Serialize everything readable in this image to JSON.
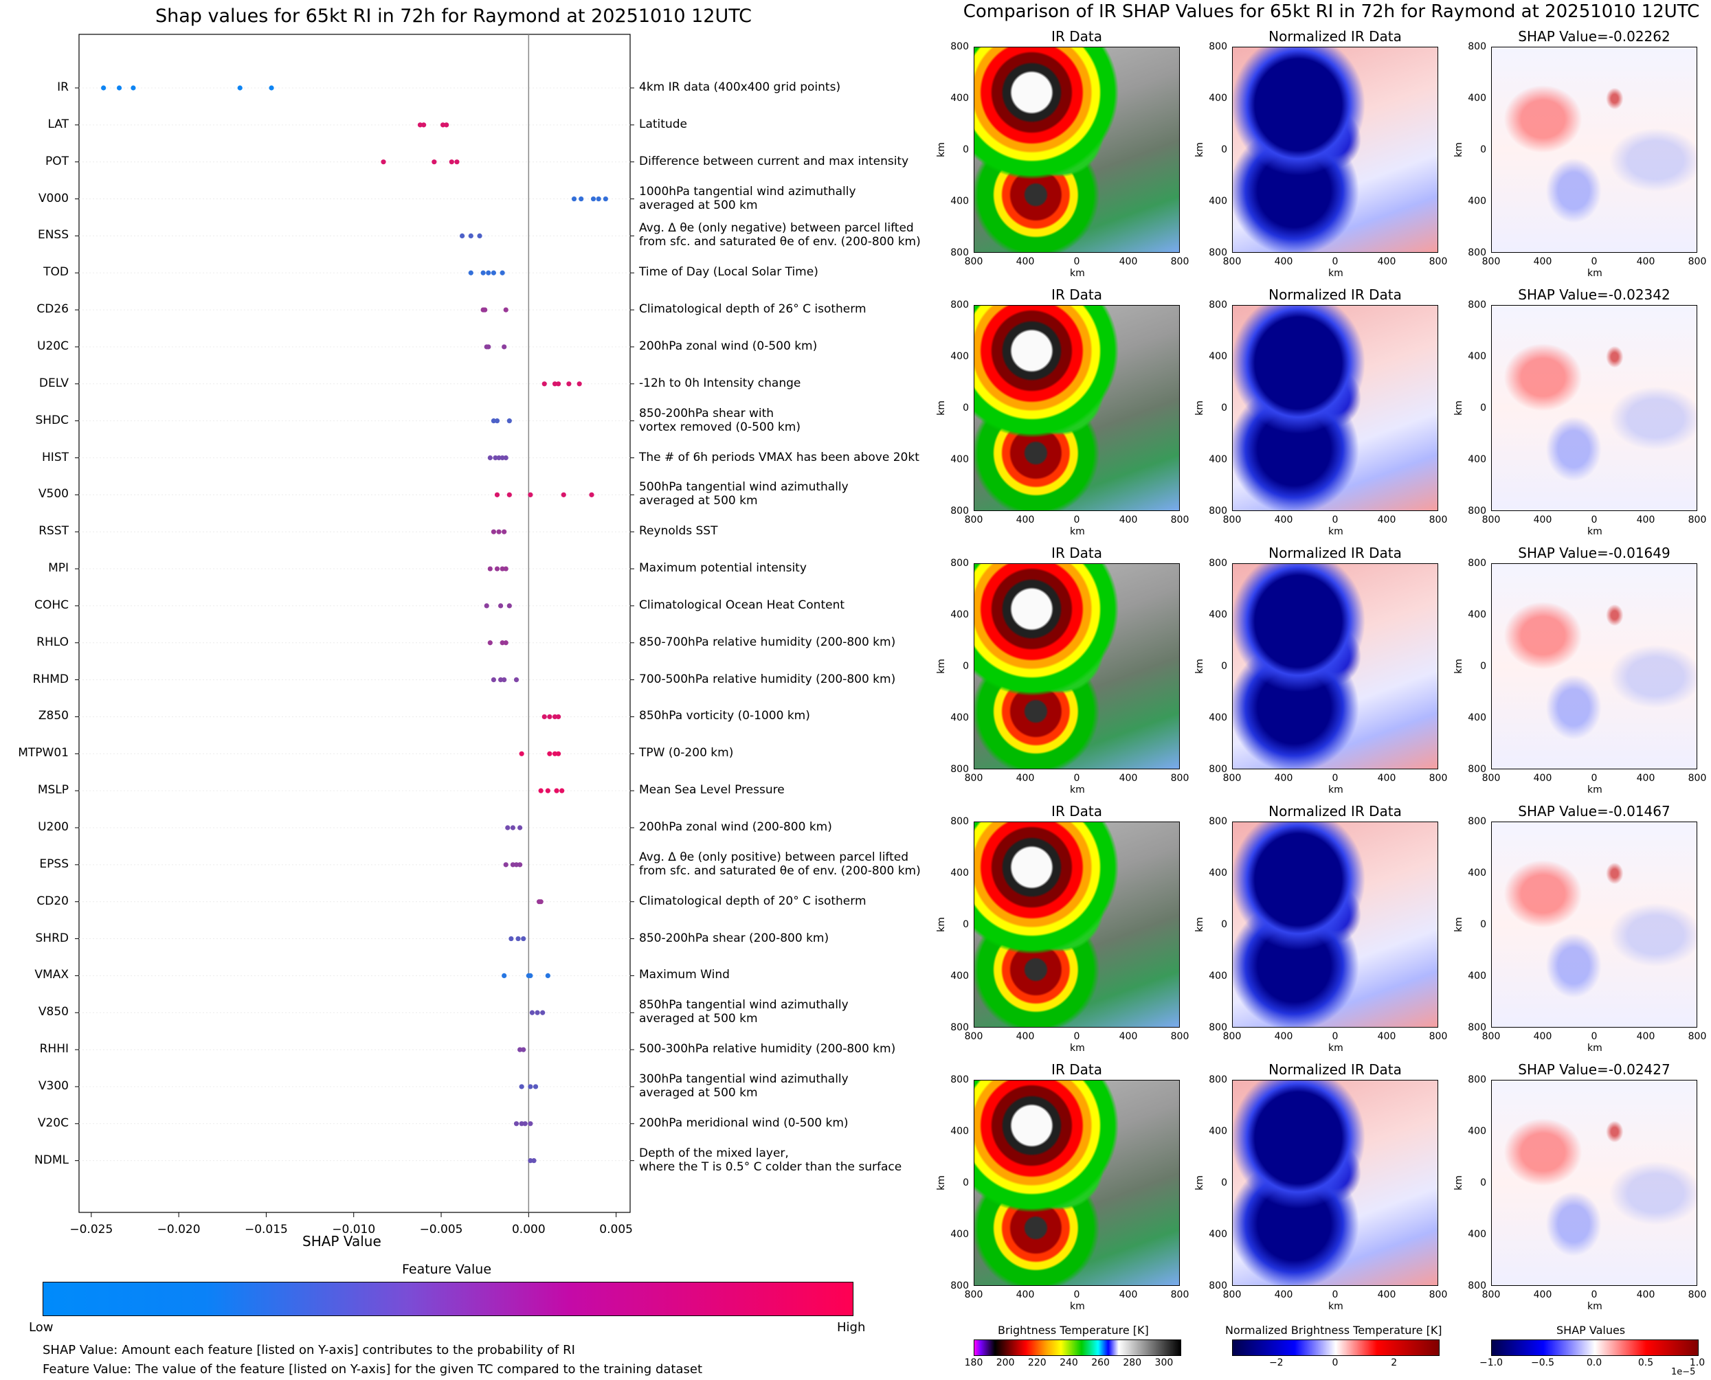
{
  "chart_data": [
    {
      "type": "scatter",
      "title": "Shap values for 65kt RI in 72h for Raymond at 20251010 12UTC",
      "xlabel": "SHAP Value",
      "xlim": [
        -0.0257,
        0.0058
      ],
      "xticks": [
        "−0.025",
        "−0.020",
        "−0.015",
        "−0.010",
        "−0.005",
        "0.000",
        "0.005"
      ],
      "xtick_values": [
        -0.025,
        -0.02,
        -0.015,
        -0.01,
        -0.005,
        0.0,
        0.005
      ],
      "colorbar": {
        "title": "Feature Value",
        "low": "Low",
        "high": "High",
        "colors": [
          "#008bfb",
          "#ff0052"
        ]
      },
      "features": [
        {
          "name": "IR",
          "description": "4km IR data (400x400 grid points)",
          "values": [
            -0.0243,
            -0.0234,
            -0.0226,
            -0.0165,
            -0.0147
          ],
          "feature_values": [
            0.05,
            0.05,
            0.05,
            0.05,
            0.05
          ]
        },
        {
          "name": "LAT",
          "description": "Latitude",
          "values": [
            -0.0062,
            -0.006,
            -0.0049,
            -0.0047
          ],
          "feature_values": [
            0.85,
            0.85,
            0.85,
            0.85
          ]
        },
        {
          "name": "POT",
          "description": "Difference between current and max intensity",
          "values": [
            -0.0083,
            -0.0054,
            -0.0044,
            -0.0041
          ],
          "feature_values": [
            0.85,
            0.85,
            0.85,
            0.85
          ]
        },
        {
          "name": "V000",
          "description": "1000hPa tangential wind azimuthally\naveraged at 500 km",
          "values": [
            0.0026,
            0.003,
            0.0037,
            0.004,
            0.0044
          ],
          "feature_values": [
            0.2,
            0.2,
            0.2,
            0.2,
            0.2
          ]
        },
        {
          "name": "ENSS",
          "description": "Avg. Δ θe (only negative) between parcel lifted\nfrom sfc. and saturated θe of env. (200-800 km)",
          "values": [
            -0.0038,
            -0.0033,
            -0.0028
          ],
          "feature_values": [
            0.3,
            0.3,
            0.3
          ]
        },
        {
          "name": "TOD",
          "description": "Time of Day (Local Solar Time)",
          "values": [
            -0.0033,
            -0.0026,
            -0.0023,
            -0.002,
            -0.0015
          ],
          "feature_values": [
            0.2,
            0.2,
            0.2,
            0.2,
            0.2
          ]
        },
        {
          "name": "CD26",
          "description": "Climatological depth of 26° C isotherm",
          "values": [
            -0.0026,
            -0.0025,
            -0.0013
          ],
          "feature_values": [
            0.6,
            0.6,
            0.6
          ]
        },
        {
          "name": "U20C",
          "description": "200hPa zonal wind (0-500 km)",
          "values": [
            -0.0024,
            -0.0023,
            -0.0014
          ],
          "feature_values": [
            0.55,
            0.55,
            0.55
          ]
        },
        {
          "name": "DELV",
          "description": "-12h to 0h Intensity change",
          "values": [
            0.0009,
            0.0015,
            0.0017,
            0.0023,
            0.0029
          ],
          "feature_values": [
            0.85,
            0.85,
            0.85,
            0.85,
            0.85
          ]
        },
        {
          "name": "SHDC",
          "description": "850-200hPa shear with\nvortex removed (0-500 km)",
          "values": [
            -0.002,
            -0.0018,
            -0.0011
          ],
          "feature_values": [
            0.3,
            0.3,
            0.3
          ]
        },
        {
          "name": "HIST",
          "description": "The # of 6h periods VMAX has been above 20kt",
          "values": [
            -0.0022,
            -0.0019,
            -0.0017,
            -0.0015,
            -0.0013
          ],
          "feature_values": [
            0.45,
            0.45,
            0.45,
            0.45,
            0.45
          ]
        },
        {
          "name": "V500",
          "description": "500hPa tangential wind azimuthally\naveraged at 500 km",
          "values": [
            -0.0018,
            -0.0011,
            0.0001,
            0.002,
            0.0036
          ],
          "feature_values": [
            0.85,
            0.85,
            0.85,
            0.85,
            0.85
          ]
        },
        {
          "name": "RSST",
          "description": "Reynolds SST",
          "values": [
            -0.002,
            -0.0017,
            -0.0014
          ],
          "feature_values": [
            0.6,
            0.6,
            0.6
          ]
        },
        {
          "name": "MPI",
          "description": "Maximum potential intensity",
          "values": [
            -0.0022,
            -0.0018,
            -0.0015,
            -0.0013
          ],
          "feature_values": [
            0.6,
            0.6,
            0.6,
            0.6
          ]
        },
        {
          "name": "COHC",
          "description": "Climatological Ocean Heat Content",
          "values": [
            -0.0024,
            -0.0016,
            -0.0011
          ],
          "feature_values": [
            0.55,
            0.55,
            0.55
          ]
        },
        {
          "name": "RHLO",
          "description": "850-700hPa relative humidity (200-800 km)",
          "values": [
            -0.0022,
            -0.0015,
            -0.0013
          ],
          "feature_values": [
            0.6,
            0.6,
            0.6
          ]
        },
        {
          "name": "RHMD",
          "description": "700-500hPa relative humidity (200-800 km)",
          "values": [
            -0.002,
            -0.0016,
            -0.0014,
            -0.0007
          ],
          "feature_values": [
            0.5,
            0.5,
            0.5,
            0.5
          ]
        },
        {
          "name": "Z850",
          "description": "850hPa vorticity (0-1000 km)",
          "values": [
            0.0009,
            0.0012,
            0.0015,
            0.0017
          ],
          "feature_values": [
            0.85,
            0.85,
            0.85,
            0.85
          ]
        },
        {
          "name": "MTPW01",
          "description": "TPW (0-200 km)",
          "values": [
            -0.0004,
            0.0012,
            0.0015,
            0.0017
          ],
          "feature_values": [
            0.9,
            0.9,
            0.9,
            0.9
          ]
        },
        {
          "name": "MSLP",
          "description": "Mean Sea Level Pressure",
          "values": [
            0.0007,
            0.0011,
            0.0016,
            0.0019
          ],
          "feature_values": [
            0.9,
            0.9,
            0.9,
            0.9
          ]
        },
        {
          "name": "U200",
          "description": "200hPa zonal wind (200-800 km)",
          "values": [
            -0.0012,
            -0.0009,
            -0.0005
          ],
          "feature_values": [
            0.45,
            0.45,
            0.45
          ]
        },
        {
          "name": "EPSS",
          "description": "Avg. Δ θe (only positive) between parcel lifted\nfrom sfc. and saturated θe of env. (200-800 km)",
          "values": [
            -0.0013,
            -0.0009,
            -0.0007,
            -0.0005
          ],
          "feature_values": [
            0.55,
            0.55,
            0.55,
            0.55
          ]
        },
        {
          "name": "CD20",
          "description": "Climatological depth of 20° C isotherm",
          "values": [
            0.0006,
            0.0007
          ],
          "feature_values": [
            0.6,
            0.6
          ]
        },
        {
          "name": "SHRD",
          "description": "850-200hPa shear (200-800 km)",
          "values": [
            -0.001,
            -0.0006,
            -0.0003
          ],
          "feature_values": [
            0.35,
            0.35,
            0.35
          ]
        },
        {
          "name": "VMAX",
          "description": "Maximum Wind",
          "values": [
            -0.0014,
            0.0,
            0.0001,
            0.0011
          ],
          "feature_values": [
            0.15,
            0.15,
            0.15,
            0.15
          ]
        },
        {
          "name": "V850",
          "description": "850hPa tangential wind azimuthally\naveraged at 500 km",
          "values": [
            0.0002,
            0.0005,
            0.0008
          ],
          "feature_values": [
            0.4,
            0.4,
            0.4
          ]
        },
        {
          "name": "RHHI",
          "description": "500-300hPa relative humidity (200-800 km)",
          "values": [
            -0.0005,
            -0.0003
          ],
          "feature_values": [
            0.5,
            0.5
          ]
        },
        {
          "name": "V300",
          "description": "300hPa tangential wind azimuthally\naveraged at 500 km",
          "values": [
            -0.0004,
            0.0001,
            0.0004
          ],
          "feature_values": [
            0.35,
            0.35,
            0.35
          ]
        },
        {
          "name": "V20C",
          "description": "200hPa meridional wind (0-500 km)",
          "values": [
            -0.0007,
            -0.0004,
            -0.0002,
            0.0001
          ],
          "feature_values": [
            0.45,
            0.45,
            0.45,
            0.45
          ]
        },
        {
          "name": "NDML",
          "description": "Depth of the mixed layer,\nwhere the T is 0.5° C colder than the surface",
          "values": [
            0.0001,
            0.0003
          ],
          "feature_values": [
            0.4,
            0.4
          ]
        }
      ]
    },
    {
      "type": "heatmap",
      "title": "Comparison of IR SHAP Values for 65kt RI in 72h for Raymond at 20251010 12UTC",
      "column_titles": [
        "IR Data",
        "Normalized IR Data"
      ],
      "shap_titles": [
        "SHAP Value=-0.02262",
        "SHAP Value=-0.02342",
        "SHAP Value=-0.01649",
        "SHAP Value=-0.01467",
        "SHAP Value=-0.02427"
      ],
      "shap_values": [
        -0.02262,
        -0.02342,
        -0.01649,
        -0.01467,
        -0.02427
      ],
      "axis_label": "km",
      "ticks": [
        "800",
        "400",
        "0",
        "400",
        "800"
      ],
      "colorbars": [
        {
          "title": "Brightness Temperature [K]",
          "ticks": [
            "180",
            "200",
            "220",
            "240",
            "260",
            "280",
            "300"
          ],
          "range": [
            180,
            310
          ]
        },
        {
          "title": "Normalized Brightness Temperature [K]",
          "ticks": [
            "−2",
            "0",
            "2"
          ],
          "range": [
            -3.5,
            3.5
          ]
        },
        {
          "title": "SHAP Values",
          "ticks": [
            "−1.0",
            "−0.5",
            "0.0",
            "0.5",
            "1.0"
          ],
          "range": [
            -1.0,
            1.0
          ],
          "offset_text": "1e−5"
        }
      ]
    }
  ],
  "notes": {
    "shap_note": "SHAP Value: Amount each feature [listed on Y-axis] contributes to the probability of RI",
    "feature_note": "Feature Value: The value of the feature [listed on Y-axis] for the given TC compared to the training dataset"
  }
}
